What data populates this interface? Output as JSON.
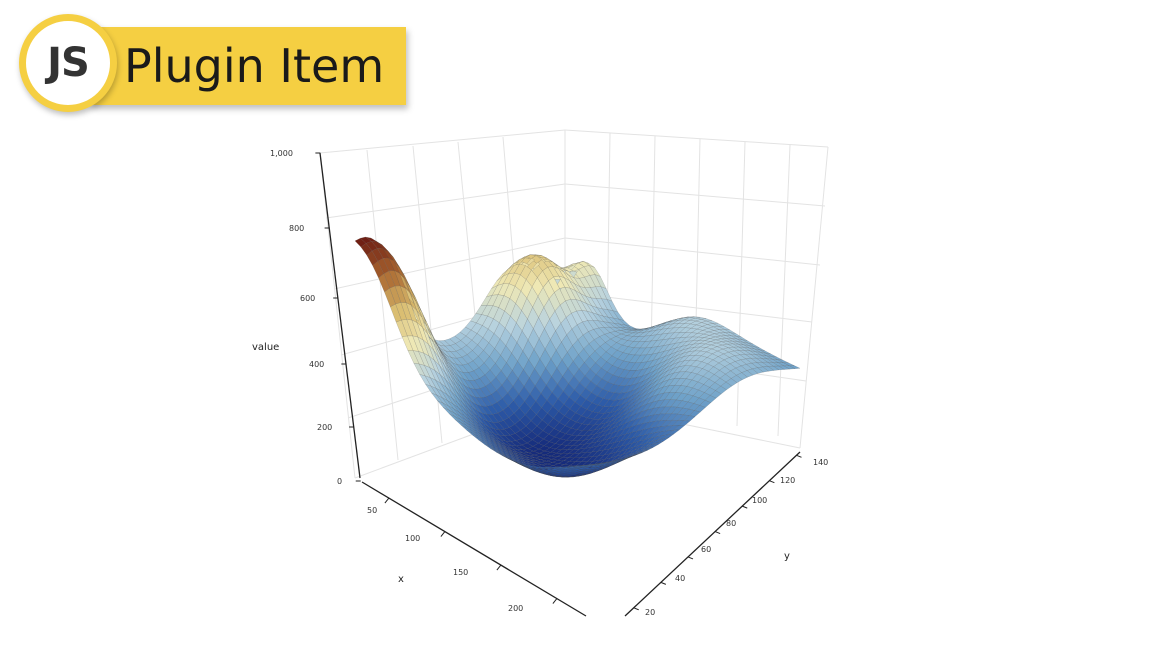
{
  "badge": {
    "logo_text": "JS",
    "title": "Plugin Item",
    "accent": "#f5cf42"
  },
  "chart_data": {
    "type": "surface",
    "x_axis": {
      "label": "x",
      "ticks": [
        "50",
        "100",
        "150",
        "200"
      ]
    },
    "y_axis": {
      "label": "y",
      "ticks": [
        "20",
        "40",
        "60",
        "80",
        "100",
        "120",
        "140"
      ]
    },
    "z_axis": {
      "label": "value",
      "ticks": [
        "0",
        "200",
        "400",
        "600",
        "800",
        "1,000"
      ],
      "range": [
        0,
        1000
      ]
    },
    "grid": true,
    "colorscale": [
      "#152a7a",
      "#2d5ba8",
      "#6fa2c9",
      "#b9d3df",
      "#efe8b4",
      "#d8ba6c",
      "#a8642e",
      "#6b1a12"
    ],
    "mesh_color": "#4a4a4a"
  }
}
